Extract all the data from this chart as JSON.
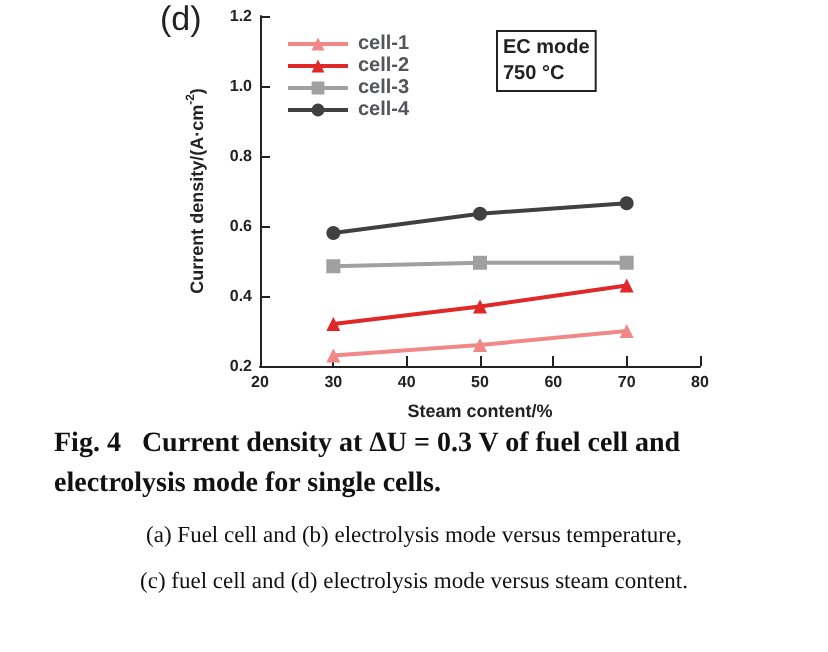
{
  "chart_data": {
    "type": "line",
    "title": "Fig. 4   Current density at ΔU = 0.3 V of fuel cell and electrolysis mode for single cells.",
    "xlabel": "Steam content/%",
    "ylabel": "Current density/(A·cm$^{-2}$)",
    "x": [
      30,
      50,
      70
    ],
    "series": [
      {
        "name": "cell-1",
        "color": "#f08888",
        "marker": "triangle",
        "values": [
          0.23,
          0.26,
          0.3
        ]
      },
      {
        "name": "cell-2",
        "color": "#e02828",
        "marker": "triangle",
        "values": [
          0.32,
          0.37,
          0.43
        ]
      },
      {
        "name": "cell-3",
        "color": "#a0a0a0",
        "marker": "square",
        "values": [
          0.485,
          0.495,
          0.495
        ]
      },
      {
        "name": "cell-4",
        "color": "#404040",
        "marker": "circle",
        "values": [
          0.58,
          0.635,
          0.665
        ]
      }
    ],
    "xlim": [
      20,
      80
    ],
    "xticks": [
      20,
      30,
      40,
      50,
      60,
      70,
      80
    ],
    "ylim": [
      0.2,
      1.2
    ],
    "yticks": [
      0.2,
      0.4,
      0.6,
      0.8,
      {
        "value": 1,
        "label": "1.0"
      },
      1.2
    ],
    "legend": "top left",
    "grid": false,
    "line_style": "solid",
    "annotations": [
      "(d)",
      "EC mode\n750 °C",
      "(a) Fuel cell and (b) electrolysis mode versus temperature,",
      "(c) fuel cell and (d) electrolysis mode versus steam content."
    ]
  }
}
